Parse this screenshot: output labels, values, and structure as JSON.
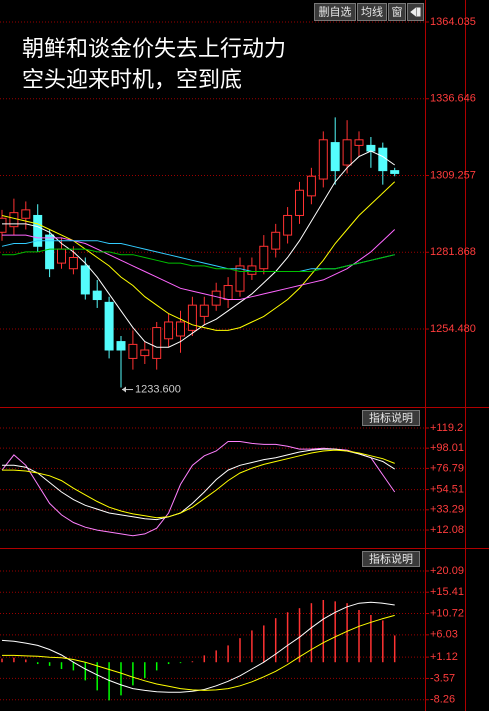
{
  "toolbar": [
    "删自选",
    "均线",
    "窗"
  ],
  "headline": [
    "朝鲜和谈金价失去上行动力",
    "空头迎来时机，空到底"
  ],
  "chart_data": [
    {
      "type": "candlestick",
      "ylim": [
        1226.66,
        1371.88
      ],
      "yticks": [
        1364.035,
        1336.646,
        1309.257,
        1281.868,
        {
          "value": 1254.48,
          "label": "1254.480"
        }
      ],
      "grid": true,
      "up_color": "#ff3232",
      "down_color": "#54fcfc",
      "open": [
        1289,
        1291,
        1294,
        1295,
        1288,
        1278,
        1276,
        1277,
        1268,
        1264,
        1250,
        1244,
        1245,
        1244,
        1251,
        1252,
        1254,
        1259,
        1263,
        1265,
        1268,
        1274,
        1276,
        1283,
        1288,
        1295,
        1302,
        1308,
        1321,
        1313,
        1320,
        1320,
        1319,
        1311
      ],
      "high": [
        1297,
        1301,
        1300,
        1299,
        1290,
        1287,
        1284,
        1280,
        1272,
        1266,
        1252,
        1254,
        1250,
        1257,
        1260,
        1261,
        1266,
        1266,
        1271,
        1273,
        1280,
        1280,
        1288,
        1292,
        1298,
        1307,
        1312,
        1325,
        1330,
        1329,
        1325,
        1323,
        1321,
        1312
      ],
      "low": [
        1286,
        1288,
        1290,
        1282,
        1273,
        1276,
        1274,
        1265,
        1262,
        1244,
        1233.6,
        1240,
        1242,
        1240,
        1248,
        1246,
        1252,
        1256,
        1261,
        1262,
        1266,
        1272,
        1274,
        1280,
        1285,
        1292,
        1299,
        1305,
        1306,
        1310,
        1316,
        1312,
        1306,
        1309
      ],
      "close": [
        1294,
        1296,
        1297,
        1284,
        1276,
        1283,
        1280,
        1267,
        1265,
        1247,
        1247,
        1249,
        1247,
        1255,
        1257,
        1257,
        1263,
        1263,
        1268,
        1270,
        1277,
        1277,
        1284,
        1289,
        1295,
        1304,
        1309,
        1322,
        1311,
        1322,
        1322,
        1318,
        1311,
        1310
      ],
      "low_label": {
        "index": 10,
        "text": "1233.600"
      },
      "series": [
        {
          "color": "#ffffff",
          "values": [
            1292,
            1292,
            1292,
            1291,
            1289,
            1285,
            1282,
            1278,
            1273,
            1267,
            1261,
            1255,
            1250,
            1248,
            1248,
            1250,
            1253,
            1256,
            1258,
            1261,
            1264,
            1267,
            1271,
            1275,
            1280,
            1286,
            1293,
            1300,
            1307,
            1312,
            1316,
            1318,
            1316,
            1313
          ]
        },
        {
          "color": "#ffff00",
          "values": [
            1295,
            1294,
            1293,
            1292,
            1290,
            1288,
            1286,
            1283,
            1280,
            1277,
            1273,
            1270,
            1266,
            1263,
            1260,
            1258,
            1256,
            1255,
            1254,
            1254,
            1255,
            1257,
            1259,
            1262,
            1265,
            1269,
            1274,
            1279,
            1285,
            1290,
            1295,
            1299,
            1303,
            1307
          ]
        },
        {
          "color": "#ff66ff",
          "values": [
            1288,
            1288,
            1288,
            1287,
            1287,
            1287,
            1286,
            1285,
            1283,
            1281,
            1279,
            1277,
            1275,
            1273,
            1271,
            1269,
            1268,
            1267,
            1266,
            1265,
            1265,
            1266,
            1267,
            1268,
            1269,
            1270,
            1271,
            1272,
            1274,
            1276,
            1279,
            1282,
            1286,
            1290
          ]
        },
        {
          "color": "#33ccff",
          "values": [
            1284,
            1285,
            1285,
            1286,
            1286,
            1286,
            1286,
            1286,
            1286,
            1285,
            1285,
            1284,
            1283,
            1282,
            1281,
            1280,
            1279,
            1278,
            1277,
            1276,
            1276,
            1275,
            1275,
            1275,
            1275,
            1275,
            1276,
            1276,
            1276,
            1277,
            1278,
            1279,
            1280,
            1281
          ]
        },
        {
          "color": "#00c000",
          "values": [
            1281,
            1281,
            1282,
            1282,
            1283,
            1283,
            1283,
            1283,
            1282,
            1282,
            1281,
            1281,
            1280,
            1279,
            1278,
            1278,
            1277,
            1277,
            1276,
            1276,
            1275,
            1275,
            1275,
            1275,
            1275,
            1275,
            1275,
            1276,
            1276,
            1277,
            1278,
            1279,
            1280,
            1281
          ]
        }
      ]
    },
    {
      "type": "line",
      "button": "指标说明",
      "ylim": [
        -6.8,
        140.2
      ],
      "yticks": [
        {
          "value": 119.2,
          "label": "+119.2"
        },
        {
          "value": 98.01,
          "label": "+98.01"
        },
        {
          "value": 76.79,
          "label": "+76.79"
        },
        {
          "value": 54.51,
          "label": "+54.51"
        },
        {
          "value": 33.29,
          "label": "+33.29"
        },
        {
          "value": 12.08,
          "label": "+12.08"
        }
      ],
      "grid": true,
      "series": [
        {
          "color": "#ff80ff",
          "values": [
            75,
            91,
            80,
            60,
            40,
            28,
            20,
            15,
            12,
            10,
            8,
            6,
            8,
            14,
            30,
            60,
            80,
            90,
            95,
            105,
            105,
            103,
            102,
            102,
            100,
            97,
            97,
            98,
            97,
            96,
            92,
            88,
            70,
            52
          ]
        },
        {
          "color": "#ffffff",
          "values": [
            80,
            80,
            78,
            72,
            62,
            52,
            44,
            38,
            34,
            30,
            28,
            26,
            24,
            23,
            26,
            30,
            40,
            52,
            65,
            75,
            80,
            83,
            86,
            88,
            91,
            94,
            96,
            97,
            97,
            95,
            92,
            88,
            84,
            76
          ]
        },
        {
          "color": "#ffff00",
          "values": [
            75,
            75,
            74,
            72,
            69,
            64,
            56,
            49,
            42,
            36,
            32,
            29,
            27,
            25,
            26,
            30,
            36,
            45,
            54,
            64,
            72,
            77,
            81,
            84,
            87,
            90,
            93,
            95,
            96,
            95,
            93,
            90,
            87,
            82
          ]
        }
      ]
    },
    {
      "type": "macd",
      "button": "指标说明",
      "ylim": [
        -10.74,
        24.93
      ],
      "yticks": [
        {
          "value": 20.09,
          "label": "+20.09"
        },
        {
          "value": 15.41,
          "label": "+15.41"
        },
        {
          "value": 10.72,
          "label": "+10.72"
        },
        {
          "value": 6.03,
          "label": "+6.03"
        },
        {
          "value": 1.12,
          "label": "+1.12"
        },
        -3.57,
        -8.26
      ],
      "grid": true,
      "up_color": "#ff3232",
      "down_color": "#00ff00",
      "values": [
        0.8,
        1.0,
        0.6,
        -0.4,
        -0.8,
        -1.5,
        -1.8,
        -4.0,
        -6.2,
        -8.4,
        -7.3,
        -5.1,
        -3.5,
        -1.8,
        -0.4,
        -0.2,
        0.2,
        1.5,
        2.6,
        3.7,
        5.3,
        7.0,
        8.1,
        9.7,
        11.0,
        11.9,
        13.0,
        13.7,
        13.4,
        13.0,
        11.5,
        10.4,
        9.2,
        5.9
      ],
      "series": [
        {
          "color": "#ffffff",
          "values": [
            4.8,
            4.6,
            4.2,
            3.7,
            2.8,
            1.6,
            0,
            -1.5,
            -2.8,
            -4,
            -5,
            -5.8,
            -6.2,
            -6.5,
            -6.6,
            -6.6,
            -6.4,
            -6,
            -5.2,
            -4.2,
            -3,
            -1.5,
            0,
            1.8,
            3.7,
            5.5,
            7.6,
            9.5,
            11,
            12.2,
            13,
            13.2,
            13,
            12.6
          ]
        },
        {
          "color": "#ffff00",
          "values": [
            1.5,
            1.5,
            1.4,
            1.3,
            1.1,
            1.0,
            0.6,
            0,
            -0.8,
            -1.6,
            -2.4,
            -3.3,
            -4.1,
            -4.8,
            -5.3,
            -5.8,
            -6.1,
            -6.2,
            -6.1,
            -5.8,
            -5.2,
            -4.3,
            -3.2,
            -2,
            -0.5,
            1.2,
            2.8,
            4.3,
            5.6,
            6.8,
            7.9,
            8.8,
            9.6,
            10.3
          ]
        }
      ]
    }
  ]
}
